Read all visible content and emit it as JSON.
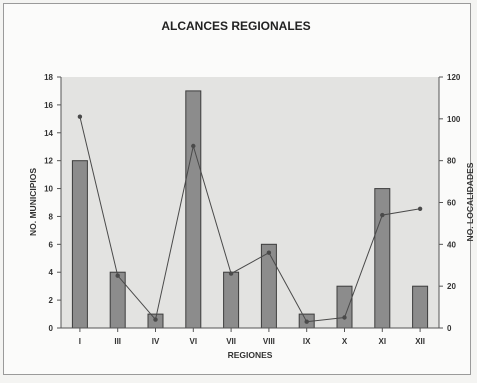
{
  "chart_data": {
    "type": "bar",
    "title": "ALCANCES REGIONALES",
    "xlabel": "REGIONES",
    "ylabel": "NO. MUNICIPIOS",
    "y2label": "NO. LOCALIDADES",
    "categories": [
      "I",
      "III",
      "IV",
      "VI",
      "VII",
      "VIII",
      "IX",
      "X",
      "XI",
      "XII"
    ],
    "series": [
      {
        "values": [
          12,
          4,
          1,
          17,
          4,
          6,
          1,
          3,
          10,
          3
        ],
        "axis": "left",
        "mark": "bar"
      },
      {
        "values": [
          101,
          25,
          4,
          87,
          26,
          36,
          3,
          5,
          54,
          57
        ],
        "axis": "right",
        "mark": "line"
      }
    ],
    "ylim": [
      0,
      18
    ],
    "yticks": [
      "0",
      "2",
      "4",
      "6",
      "8",
      "10",
      "12",
      "14",
      "16",
      "18"
    ],
    "y2lim": [
      0,
      120
    ],
    "y2ticks": [
      "0",
      "20",
      "40",
      "60",
      "80",
      "100",
      "120"
    ],
    "grid": false,
    "colors": {
      "bar_fill": "#8c8c8c",
      "bar_stroke": "#3c3c3c",
      "line": "#4a4a4a",
      "plot_bg": "#e3e3e1"
    }
  }
}
